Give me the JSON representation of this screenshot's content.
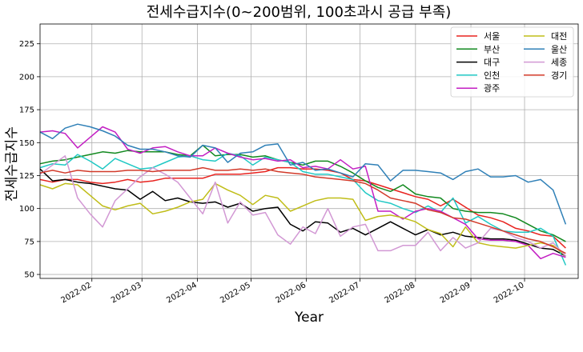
{
  "chart_data": {
    "type": "line",
    "title": "전세수급지수(0~200범위, 100초과시 공급 부족)",
    "xlabel": "Year",
    "ylabel": "전세수급지수",
    "ylim": [
      47,
      240
    ],
    "xlim": [
      "2022-01-03",
      "2022-10-31"
    ],
    "grid": true,
    "legend_position": "top-right",
    "yticks": [
      50,
      75,
      100,
      125,
      150,
      175,
      200,
      225
    ],
    "xticks": [
      {
        "date": "2022-02-01",
        "label": "2022-02"
      },
      {
        "date": "2022-03-01",
        "label": "2022-03"
      },
      {
        "date": "2022-04-01",
        "label": "2022-04"
      },
      {
        "date": "2022-05-01",
        "label": "2022-05"
      },
      {
        "date": "2022-06-01",
        "label": "2022-06"
      },
      {
        "date": "2022-07-01",
        "label": "2022-07"
      },
      {
        "date": "2022-08-01",
        "label": "2022-08"
      },
      {
        "date": "2022-09-01",
        "label": "2022-09"
      },
      {
        "date": "2022-10-01",
        "label": "2022-10"
      }
    ],
    "x": [
      "2022-01-03",
      "2022-01-10",
      "2022-01-17",
      "2022-01-24",
      "2022-01-31",
      "2022-02-07",
      "2022-02-14",
      "2022-02-21",
      "2022-02-28",
      "2022-03-07",
      "2022-03-14",
      "2022-03-21",
      "2022-03-28",
      "2022-04-04",
      "2022-04-11",
      "2022-04-18",
      "2022-04-25",
      "2022-05-02",
      "2022-05-09",
      "2022-05-16",
      "2022-05-23",
      "2022-05-30",
      "2022-06-06",
      "2022-06-13",
      "2022-06-20",
      "2022-06-27",
      "2022-07-04",
      "2022-07-11",
      "2022-07-18",
      "2022-07-25",
      "2022-08-01",
      "2022-08-08",
      "2022-08-15",
      "2022-08-22",
      "2022-08-29",
      "2022-09-05",
      "2022-09-12",
      "2022-09-19",
      "2022-09-26",
      "2022-10-03",
      "2022-10-10",
      "2022-10-17",
      "2022-10-24"
    ],
    "series": [
      {
        "name": "서울",
        "color": "#e8231f",
        "values": [
          122,
          120,
          122,
          122,
          120,
          119,
          120,
          122,
          120,
          121,
          123,
          123,
          123,
          123,
          126,
          126,
          126,
          127,
          128,
          131,
          131,
          130,
          130,
          129,
          127,
          122,
          121,
          118,
          115,
          112,
          109,
          107,
          102,
          107,
          101,
          95,
          93,
          90,
          85,
          83,
          80,
          79,
          70
        ]
      },
      {
        "name": "부산",
        "color": "#12891f",
        "values": [
          134,
          136,
          137,
          139,
          141,
          143,
          142,
          144,
          143,
          143,
          143,
          141,
          140,
          148,
          140,
          141,
          141,
          139,
          140,
          137,
          135,
          133,
          136,
          136,
          132,
          127,
          121,
          116,
          113,
          118,
          111,
          109,
          108,
          100,
          98,
          97,
          97,
          96,
          93,
          88,
          83,
          80,
          75
        ]
      },
      {
        "name": "대구",
        "color": "#000000",
        "values": [
          130,
          121,
          122,
          120,
          119,
          117,
          115,
          114,
          107,
          113,
          106,
          108,
          105,
          104,
          105,
          101,
          104,
          98,
          100,
          101,
          88,
          83,
          90,
          89,
          82,
          85,
          80,
          85,
          90,
          85,
          80,
          84,
          80,
          82,
          79,
          78,
          77,
          77,
          76,
          73,
          70,
          69,
          64
        ]
      },
      {
        "name": "인천",
        "color": "#20c8c4",
        "values": [
          131,
          134,
          133,
          141,
          136,
          130,
          138,
          134,
          130,
          131,
          135,
          139,
          140,
          137,
          136,
          142,
          140,
          133,
          139,
          137,
          135,
          128,
          126,
          126,
          124,
          122,
          112,
          106,
          104,
          100,
          97,
          102,
          97,
          108,
          89,
          94,
          88,
          83,
          82,
          82,
          85,
          79,
          57
        ]
      },
      {
        "name": "광주",
        "color": "#c31fc3",
        "values": [
          158,
          159,
          157,
          146,
          154,
          162,
          158,
          145,
          142,
          146,
          147,
          143,
          140,
          140,
          146,
          142,
          139,
          137,
          138,
          136,
          137,
          131,
          132,
          130,
          137,
          130,
          132,
          98,
          98,
          92,
          98,
          100,
          98,
          93,
          88,
          77,
          76,
          76,
          75,
          72,
          62,
          66,
          63
        ]
      },
      {
        "name": "대전",
        "color": "#c0bd18",
        "values": [
          118,
          115,
          119,
          118,
          110,
          102,
          99,
          102,
          104,
          96,
          98,
          101,
          105,
          107,
          119,
          114,
          110,
          103,
          110,
          108,
          98,
          102,
          106,
          108,
          108,
          107,
          91,
          94,
          95,
          93,
          90,
          84,
          81,
          71,
          86,
          74,
          72,
          71,
          70,
          72,
          74,
          72,
          64
        ]
      },
      {
        "name": "울산",
        "color": "#2f80b7",
        "values": [
          158,
          153,
          161,
          164,
          162,
          159,
          155,
          148,
          145,
          145,
          143,
          140,
          139,
          148,
          146,
          135,
          142,
          143,
          148,
          149,
          133,
          135,
          129,
          130,
          127,
          124,
          134,
          133,
          121,
          129,
          129,
          128,
          127,
          122,
          128,
          130,
          124,
          124,
          125,
          120,
          122,
          114,
          88
        ]
      },
      {
        "name": "세종",
        "color": "#d298d4",
        "values": [
          126,
          133,
          140,
          108,
          96,
          86,
          106,
          115,
          124,
          131,
          126,
          120,
          108,
          96,
          120,
          89,
          105,
          95,
          97,
          80,
          73,
          86,
          81,
          100,
          79,
          86,
          88,
          68,
          68,
          72,
          72,
          82,
          68,
          78,
          70,
          74,
          85,
          83,
          78,
          75,
          70,
          74,
          64
        ]
      },
      {
        "name": "경기",
        "color": "#d23a2a",
        "values": [
          127,
          129,
          127,
          129,
          128,
          128,
          128,
          129,
          129,
          128,
          129,
          129,
          129,
          131,
          129,
          129,
          130,
          129,
          130,
          128,
          127,
          126,
          124,
          123,
          122,
          121,
          119,
          114,
          108,
          106,
          104,
          99,
          97,
          93,
          92,
          89,
          86,
          83,
          80,
          77,
          75,
          71,
          66
        ]
      }
    ]
  }
}
